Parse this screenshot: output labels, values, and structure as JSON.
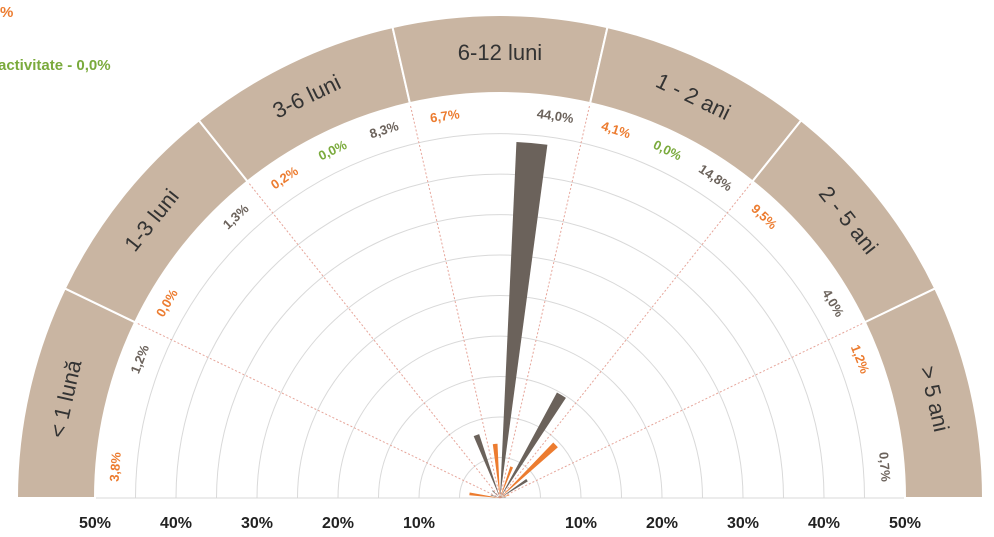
{
  "chart_data": {
    "type": "polar-bar",
    "colors": {
      "band": "#c9b5a2",
      "band_border": "#ffffff",
      "dark": "#6b625b",
      "orange": "#ec7c30",
      "green": "#7aaa3c",
      "grid": "#d9d9d9",
      "divider": "#e6a59a"
    },
    "legend_fragments": [
      {
        "text": "%",
        "color": "orange"
      },
      {
        "text": "activitate -  0,0%",
        "color": "green"
      }
    ],
    "x_ticks_left": [
      "50%",
      "40%",
      "30%",
      "20%",
      "10%"
    ],
    "x_ticks_right": [
      "10%",
      "20%",
      "30%",
      "40%",
      "50%"
    ],
    "rlim": [
      0,
      50
    ],
    "categories": [
      "< 1 lună",
      "1-3 luni",
      "3-6 luni",
      "6-12 luni",
      "1 - 2 ani",
      "2 - 5 ani",
      "> 5 ani"
    ],
    "series": [
      {
        "color": "orange",
        "values": [
          3.8,
          0.0,
          0.2,
          6.7,
          4.1,
          9.5,
          1.2
        ]
      },
      {
        "color": "green",
        "values": [
          null,
          null,
          0.0,
          null,
          0.0,
          null,
          null
        ]
      },
      {
        "color": "dark",
        "values": [
          1.2,
          1.3,
          8.3,
          44.0,
          14.8,
          4.0,
          0.7
        ]
      }
    ],
    "value_labels": {
      "orange": [
        "3,8%",
        "0,0%",
        "0,2%",
        "6,7%",
        "4,1%",
        "9,5%",
        "1,2%"
      ],
      "green": [
        "",
        "",
        "0,0%",
        "",
        "0,0%",
        "",
        ""
      ],
      "dark": [
        "1,2%",
        "1,3%",
        "8,3%",
        "44,0%",
        "14,8%",
        "4,0%",
        "0,7%"
      ]
    }
  }
}
